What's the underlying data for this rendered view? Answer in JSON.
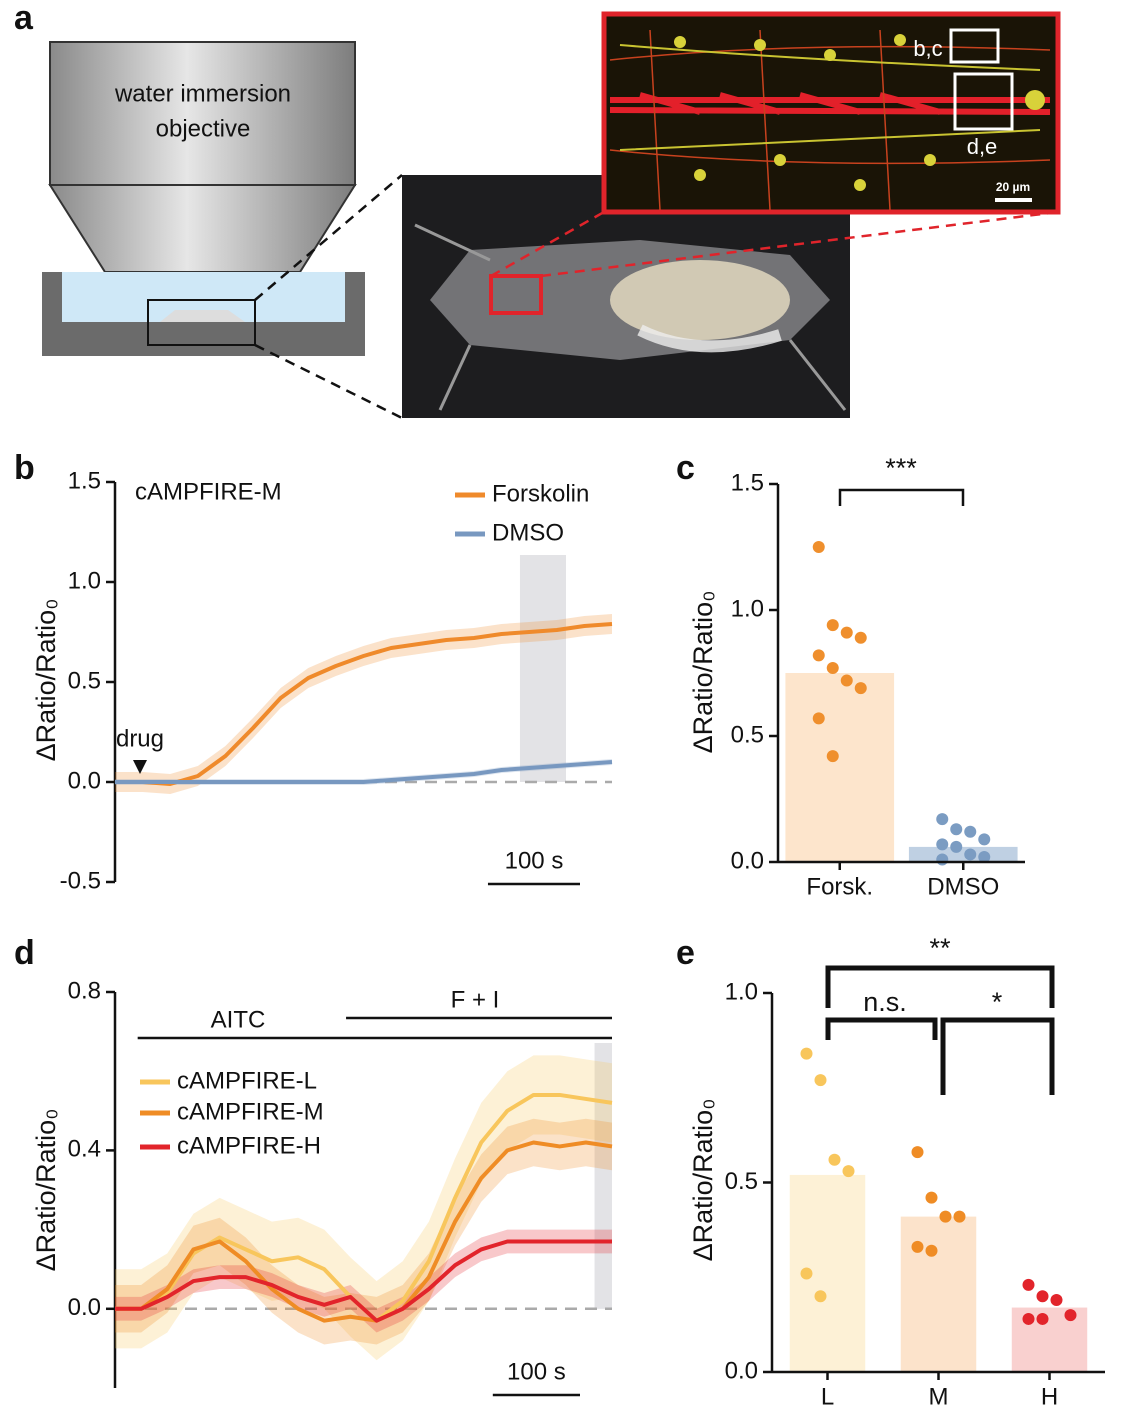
{
  "panel_a": {
    "panel_label": "a",
    "objective_label": [
      "water immersion",
      "objective"
    ],
    "roi_labels": [
      "b,c",
      "d,e"
    ],
    "scale_bar": "20 µm"
  },
  "chart_data": [
    {
      "type": "line",
      "panel_label": "b",
      "ylabel": "ΔRatio/Ratio₀",
      "annotations": [
        "cAMPFIRE-M",
        "drug"
      ],
      "x": [
        0,
        30,
        60,
        90,
        120,
        150,
        180,
        210,
        240,
        270,
        300,
        330,
        360,
        390,
        420,
        450,
        480,
        510,
        540
      ],
      "xlim": [
        0,
        540
      ],
      "ylim": [
        -0.5,
        1.5
      ],
      "yticks": [
        -0.5,
        {
          "value": 0,
          "label": "0.0"
        },
        0.5,
        {
          "value": 1,
          "label": "1.0"
        },
        1.5
      ],
      "legend": "upper right",
      "series": [
        {
          "name": "Forskolin",
          "color": "#ef8a2b",
          "error": 0.05,
          "values": [
            0,
            0,
            -0.01,
            0.03,
            0.13,
            0.27,
            0.42,
            0.52,
            0.58,
            0.63,
            0.67,
            0.69,
            0.71,
            0.72,
            0.74,
            0.75,
            0.76,
            0.78,
            0.79
          ]
        },
        {
          "name": "DMSO",
          "color": "#7898c0",
          "error": 0.015,
          "values": [
            0,
            0,
            0,
            0,
            0,
            0,
            0,
            0,
            0,
            0,
            0.01,
            0.02,
            0.03,
            0.04,
            0.06,
            0.07,
            0.08,
            0.09,
            0.1
          ]
        }
      ],
      "highlight": [
        440,
        490
      ],
      "hline": 0,
      "scalebar": {
        "value": 100,
        "label": "100 s"
      }
    },
    {
      "type": "bar",
      "panel_label": "c",
      "ylabel": "ΔRatio/Ratio₀",
      "categories": [
        "Forsk.",
        "DMSO"
      ],
      "values": [
        0.75,
        0.06
      ],
      "colors": [
        "#fde5cc",
        "#bfd0e3"
      ],
      "point_colors": [
        "#ef8f2d",
        "#7b9cc2"
      ],
      "points": [
        [
          1.25,
          0.94,
          0.91,
          0.89,
          0.82,
          0.77,
          0.72,
          0.69,
          0.57,
          0.42
        ],
        [
          0.17,
          0.13,
          0.12,
          0.09,
          0.07,
          0.06,
          0.03,
          0.02,
          0.01
        ]
      ],
      "ylim": [
        0,
        1.5
      ],
      "yticks": [
        {
          "value": 0,
          "label": "0.0"
        },
        0.5,
        {
          "value": 1,
          "label": "1.0"
        },
        1.5
      ],
      "significance": [
        "***"
      ]
    },
    {
      "type": "line",
      "panel_label": "d",
      "ylabel": "ΔRatio/Ratio₀",
      "x": [
        0,
        30,
        60,
        90,
        120,
        150,
        180,
        210,
        240,
        270,
        300,
        330,
        360,
        390,
        420,
        450,
        480,
        510,
        540,
        570
      ],
      "xlim": [
        0,
        570
      ],
      "ylim": [
        -0.2,
        0.8
      ],
      "yticks": [
        {
          "value": 0,
          "label": "0.0"
        },
        0.4,
        0.8
      ],
      "legend": "center left",
      "series": [
        {
          "name": "cAMPFIRE-L",
          "color": "#f8c65c",
          "error": 0.1,
          "values": [
            0,
            0,
            0.04,
            0.14,
            0.18,
            0.15,
            0.12,
            0.13,
            0.1,
            0.03,
            -0.03,
            0.02,
            0.12,
            0.28,
            0.42,
            0.5,
            0.54,
            0.54,
            0.53,
            0.52
          ]
        },
        {
          "name": "cAMPFIRE-M",
          "color": "#ef8c25",
          "error": 0.06,
          "values": [
            0,
            0,
            0.05,
            0.15,
            0.17,
            0.12,
            0.05,
            0,
            -0.03,
            -0.02,
            -0.03,
            0,
            0.08,
            0.22,
            0.33,
            0.4,
            0.42,
            0.41,
            0.42,
            0.41
          ]
        },
        {
          "name": "cAMPFIRE-H",
          "color": "#e2242b",
          "error": 0.03,
          "values": [
            0,
            0,
            0.03,
            0.07,
            0.08,
            0.08,
            0.06,
            0.03,
            0.01,
            0.03,
            -0.03,
            0,
            0.05,
            0.11,
            0.15,
            0.17,
            0.17,
            0.17,
            0.17,
            0.17
          ]
        }
      ],
      "events": [
        {
          "label": "AITC",
          "start": 26,
          "end": 570
        },
        {
          "label": "F + I",
          "start": 265,
          "end": 570
        }
      ],
      "highlight": [
        550,
        570
      ],
      "hline": 0,
      "scalebar": {
        "value": 100,
        "label": "100 s"
      }
    },
    {
      "type": "bar",
      "panel_label": "e",
      "ylabel": "ΔRatio/Ratio₀",
      "categories": [
        "L",
        "M",
        "H"
      ],
      "values": [
        0.52,
        0.41,
        0.17
      ],
      "colors": [
        "#fdf1d6",
        "#fce3cb",
        "#f9d0cf"
      ],
      "point_colors": [
        "#f8c65c",
        "#ef8c25",
        "#e2242b"
      ],
      "points": [
        [
          0.84,
          0.77,
          0.56,
          0.53,
          0.26,
          0.2
        ],
        [
          0.58,
          0.46,
          0.41,
          0.41,
          0.33,
          0.32
        ],
        [
          0.23,
          0.2,
          0.19,
          0.15,
          0.14,
          0.14
        ]
      ],
      "ylim": [
        0,
        1
      ],
      "yticks": [
        {
          "value": 0,
          "label": "0.0"
        },
        0.5,
        {
          "value": 1,
          "label": "1.0"
        }
      ],
      "significance": [
        "**",
        "n.s.",
        "*"
      ]
    }
  ]
}
